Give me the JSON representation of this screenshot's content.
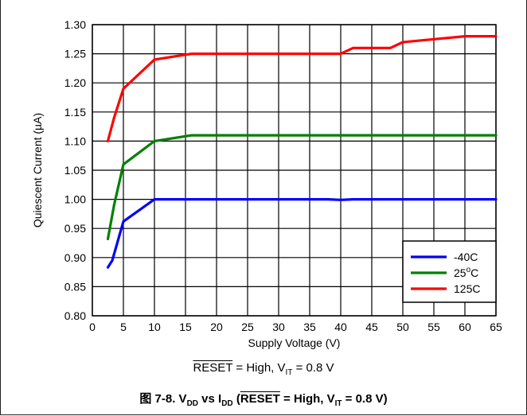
{
  "chart_data": {
    "type": "line",
    "xlabel": "Supply Voltage (V)",
    "ylabel": "Quiescent Current (µA)",
    "xlim": [
      0,
      65
    ],
    "ylim": [
      0.8,
      1.3
    ],
    "x_ticks": [
      "0",
      "5",
      "10",
      "15",
      "20",
      "25",
      "30",
      "35",
      "40",
      "45",
      "50",
      "55",
      "60",
      "65"
    ],
    "y_ticks": [
      "0.80",
      "0.85",
      "0.90",
      "0.95",
      "1.00",
      "1.05",
      "1.10",
      "1.15",
      "1.20",
      "1.25",
      "1.30"
    ],
    "grid": true,
    "legend_position": "bottom-right",
    "series": [
      {
        "name": "-40C",
        "color": "#0000ff",
        "x": [
          2.5,
          3.2,
          5,
          10,
          20,
          30,
          38,
          40,
          42,
          50,
          65
        ],
        "y": [
          0.883,
          0.895,
          0.962,
          1.0,
          1.0,
          1.0,
          1.0,
          0.999,
          1.0,
          1.0,
          1.0
        ]
      },
      {
        "name": "25",
        "name_sup": "o",
        "name_suffix": "C",
        "color": "#008000",
        "x": [
          2.5,
          3.5,
          5,
          10,
          16,
          30,
          50,
          65
        ],
        "y": [
          0.932,
          0.99,
          1.06,
          1.1,
          1.11,
          1.11,
          1.11,
          1.11
        ]
      },
      {
        "name": "125C",
        "color": "#ff0000",
        "x": [
          2.5,
          3.5,
          5,
          10,
          16,
          40,
          42,
          48,
          50,
          55,
          60,
          65
        ],
        "y": [
          1.1,
          1.14,
          1.19,
          1.24,
          1.25,
          1.25,
          1.26,
          1.26,
          1.27,
          1.275,
          1.28,
          1.28
        ]
      }
    ]
  },
  "condition": {
    "reset": "RESET",
    "middle": " = High, V",
    "sub": "IT",
    "end": " = 0.8 V"
  },
  "caption": {
    "prefix": "图 7-8. V",
    "sub1": "DD",
    "vs": " vs I",
    "sub2": "DD",
    "open": " (",
    "reset": "RESET",
    "middle": " = High, V",
    "sub3": "IT",
    "end": " = 0.8 V)"
  }
}
